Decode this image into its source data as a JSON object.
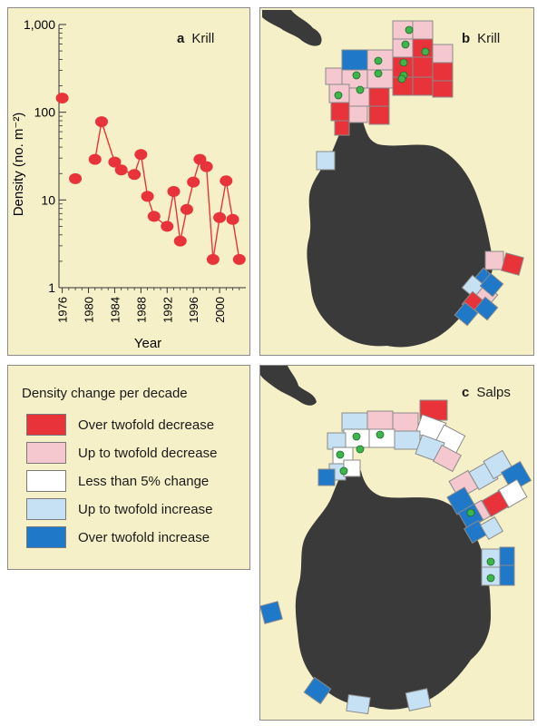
{
  "chart_data": [
    {
      "type": "scatter",
      "panel_letter": "a",
      "title": "Krill",
      "ylabel": "Density (no. m⁻²)",
      "xlabel": "Year",
      "y_scale": "log",
      "ylim": [
        1,
        1000
      ],
      "xlim": [
        1975.5,
        2004
      ],
      "y_ticks": [
        1,
        10,
        100,
        1000
      ],
      "y_tick_labels": [
        "1",
        "10",
        "100",
        "1,000"
      ],
      "x_tick_labels": [
        "1976",
        "1980",
        "1984",
        "1988",
        "1992",
        "1996",
        "2000"
      ],
      "x_ticks": [
        1976,
        1980,
        1984,
        1988,
        1992,
        1996,
        2000
      ],
      "points": [
        {
          "x": 1976,
          "y": 145,
          "connected": false
        },
        {
          "x": 1978,
          "y": 17.5,
          "connected": false
        },
        {
          "x": 1981,
          "y": 29,
          "connected": true
        },
        {
          "x": 1982,
          "y": 78,
          "connected": true
        },
        {
          "x": 1984,
          "y": 27,
          "connected": true
        },
        {
          "x": 1985,
          "y": 22,
          "connected": true
        },
        {
          "x": 1987,
          "y": 19.5,
          "connected": true
        },
        {
          "x": 1988,
          "y": 33,
          "connected": true
        },
        {
          "x": 1989,
          "y": 11,
          "connected": true
        },
        {
          "x": 1990,
          "y": 6.5,
          "connected": true
        },
        {
          "x": 1992,
          "y": 5,
          "connected": true
        },
        {
          "x": 1993,
          "y": 12.5,
          "connected": true
        },
        {
          "x": 1994,
          "y": 3.4,
          "connected": true
        },
        {
          "x": 1995,
          "y": 7.8,
          "connected": true
        },
        {
          "x": 1996,
          "y": 16,
          "connected": true
        },
        {
          "x": 1997,
          "y": 29,
          "connected": true
        },
        {
          "x": 1998,
          "y": 24,
          "connected": true
        },
        {
          "x": 1999,
          "y": 2.1,
          "connected": true
        },
        {
          "x": 2000,
          "y": 6.3,
          "connected": true
        },
        {
          "x": 2001,
          "y": 16.5,
          "connected": true
        },
        {
          "x": 2002,
          "y": 6,
          "connected": true
        },
        {
          "x": 2003,
          "y": 2.1,
          "connected": true
        }
      ],
      "marker_color": "#e8333b",
      "background_color": "#f6f0c8",
      "grid": false
    },
    {
      "type": "heatmap",
      "panel_letter": "b",
      "title": "Krill",
      "description_type": "map-grid",
      "background_color": "#f6f0c8",
      "land_color": "#3a3a3a",
      "cell_counts": {
        "over_twofold_decrease": 14,
        "up_to_twofold_decrease": 13,
        "less_than_5pct": 0,
        "up_to_twofold_increase": 3,
        "over_twofold_increase": 8
      },
      "green_dot_color": "#3cb54a"
    },
    {
      "type": "heatmap",
      "panel_letter": "c",
      "title": "Salps",
      "description_type": "map-grid",
      "background_color": "#f6f0c8",
      "land_color": "#3a3a3a",
      "cell_counts": {
        "over_twofold_decrease": 2,
        "up_to_twofold_decrease": 8,
        "less_than_5pct": 5,
        "up_to_twofold_increase": 12,
        "over_twofold_increase": 12
      },
      "green_dot_color": "#3cb54a"
    }
  ],
  "legend": {
    "title": "Density change per decade",
    "items": [
      {
        "label": "Over twofold decrease",
        "color": "#e8333b"
      },
      {
        "label": "Up to twofold decrease",
        "color": "#f5c7cf"
      },
      {
        "label": "Less than 5% change",
        "color": "#ffffff"
      },
      {
        "label": "Up to twofold increase",
        "color": "#c6e1f3"
      },
      {
        "label": "Over twofold increase",
        "color": "#1f78c8"
      }
    ]
  }
}
